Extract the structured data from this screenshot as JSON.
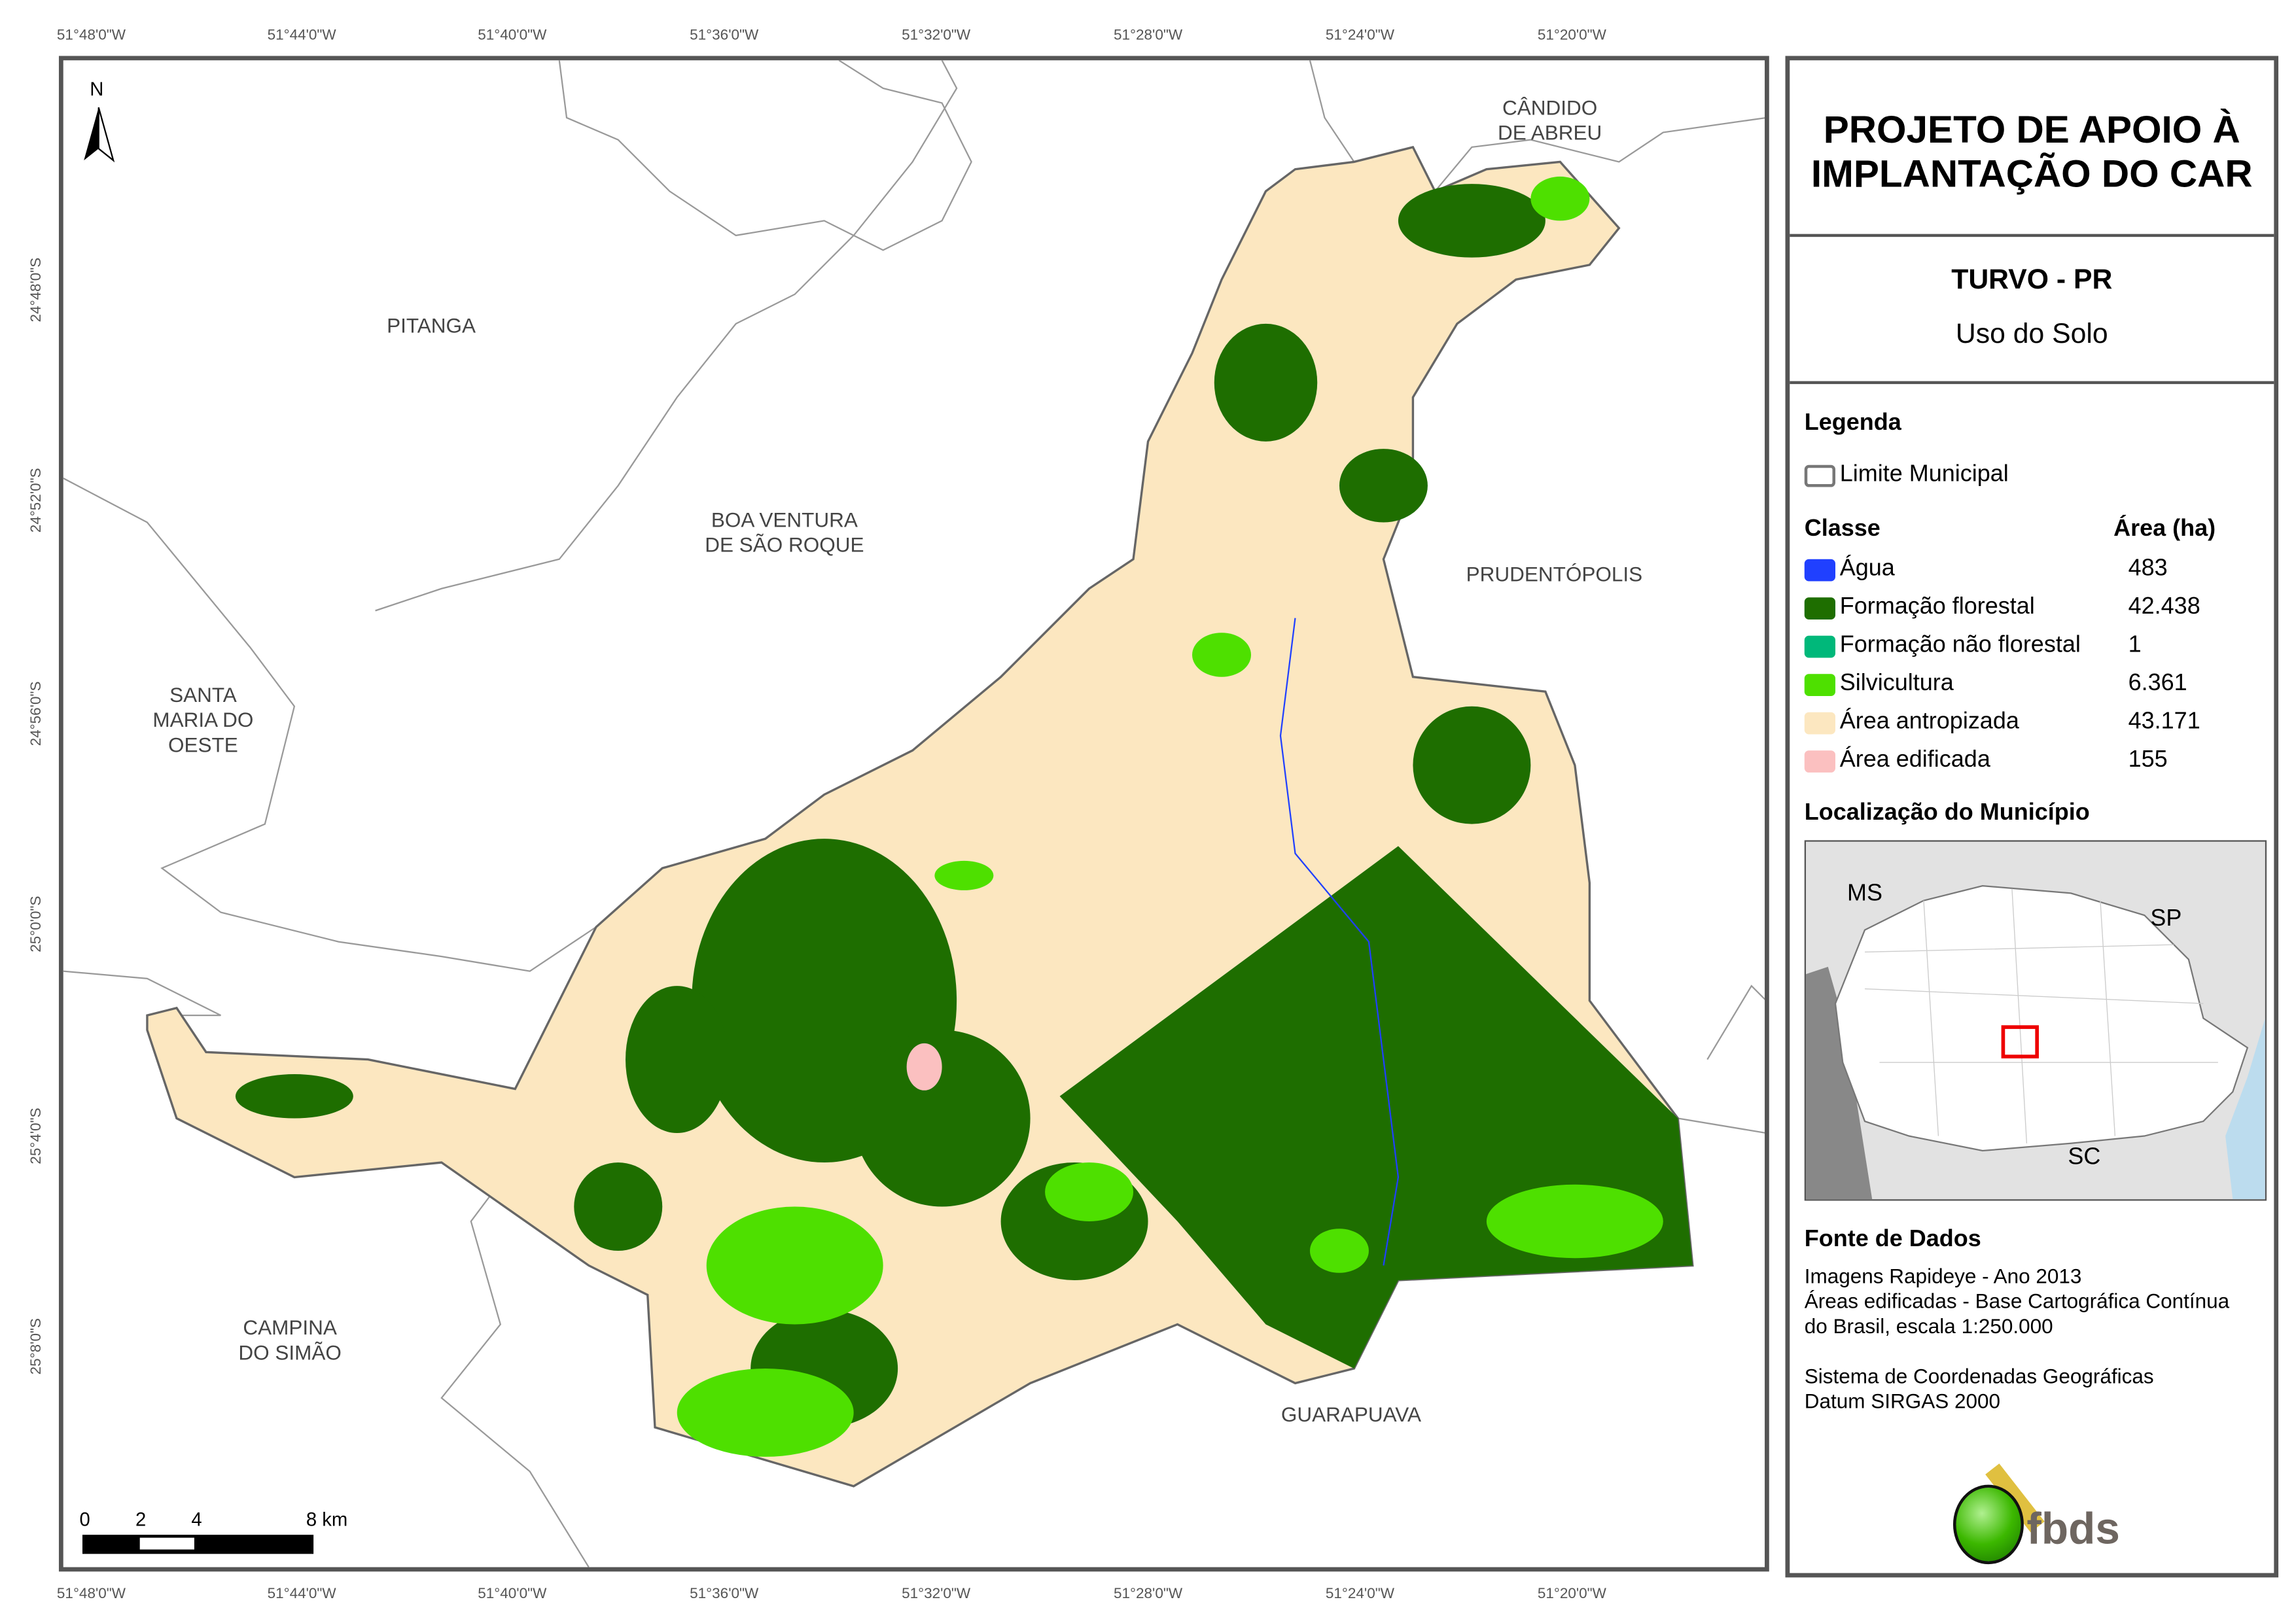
{
  "title": "PROJETO DE APOIO À IMPLANTAÇÃO DO CAR",
  "municipality": "TURVO - PR",
  "subtitle": "Uso do Solo",
  "legend": {
    "heading": "Legenda",
    "boundary_label": "Limite Municipal",
    "class_header": "Classe",
    "area_header": "Área (ha)",
    "classes": [
      {
        "label": "Água",
        "area": "483",
        "color": "#2040ff"
      },
      {
        "label": "Formação florestal",
        "area": "42.438",
        "color": "#1e6e00"
      },
      {
        "label": "Formação não florestal",
        "area": "1",
        "color": "#00b87a"
      },
      {
        "label": "Silvicultura",
        "area": "6.361",
        "color": "#4ee000"
      },
      {
        "label": "Área antropizada",
        "area": "43.171",
        "color": "#fce7c0"
      },
      {
        "label": "Área edificada",
        "area": "155",
        "color": "#fbc0c0"
      }
    ]
  },
  "location": {
    "heading": "Localização do Município",
    "labels": [
      "MS",
      "SP",
      "SC"
    ]
  },
  "sources": {
    "heading": "Fonte de Dados",
    "lines": "Imagens Rapideye - Ano 2013\nÁreas edificadas - Base Cartográfica Contínua\ndo Brasil, escala 1:250.000",
    "crs": "Sistema de Coordenadas Geográficas\nDatum SIRGAS 2000"
  },
  "logo_text": "fbds",
  "north": "N",
  "scale_bar": {
    "labels": [
      "0",
      "2",
      "4",
      "8 km"
    ]
  },
  "longitudes": [
    "51°48'0\"W",
    "51°44'0\"W",
    "51°40'0\"W",
    "51°36'0\"W",
    "51°32'0\"W",
    "51°28'0\"W",
    "51°24'0\"W",
    "51°20'0\"W"
  ],
  "latitudes": [
    "24°48'0\"S",
    "24°52'0\"S",
    "24°56'0\"S",
    "25°0'0\"S",
    "25°4'0\"S",
    "25°8'0\"S"
  ],
  "places": [
    {
      "name": "CÂNDIDO\nDE ABREU"
    },
    {
      "name": "PITANGA"
    },
    {
      "name": "BOA VENTURA\nDE SÃO ROQUE"
    },
    {
      "name": "PRUDENTÓPOLIS"
    },
    {
      "name": "SANTA\nMARIA DO\nOESTE"
    },
    {
      "name": "CAMPINA\nDO SIMÃO"
    },
    {
      "name": "GUARAPUAVA"
    }
  ]
}
